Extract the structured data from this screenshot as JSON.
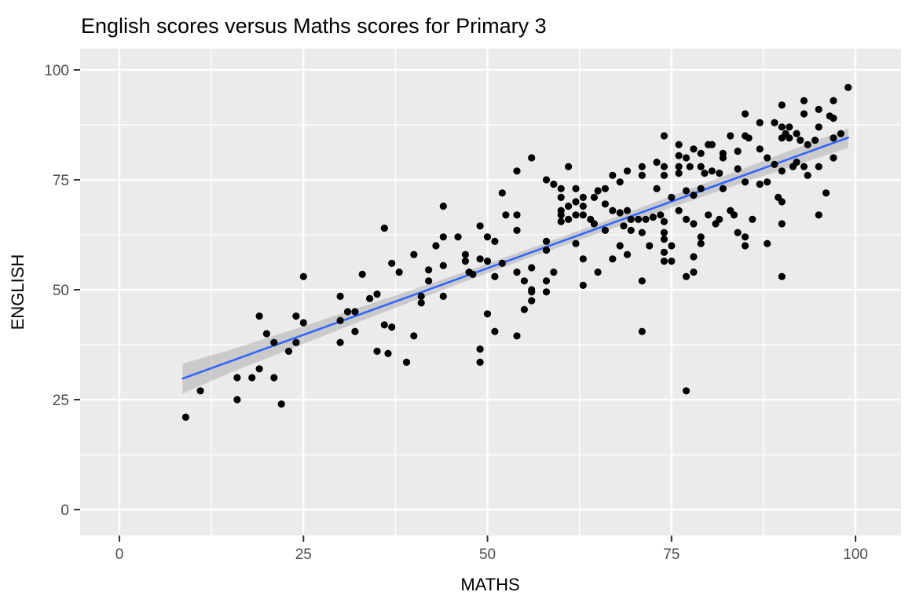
{
  "chart_data": {
    "type": "scatter",
    "title": "English scores versus Maths scores for Primary 3",
    "xlabel": "MATHS",
    "ylabel": "ENGLISH",
    "legend": "none",
    "grid": "white major and minor gridlines on grey panel",
    "x_ticks": [
      0,
      25,
      50,
      75,
      100
    ],
    "y_ticks": [
      0,
      25,
      50,
      75,
      100
    ],
    "x_minor_ticks": [
      12.5,
      37.5,
      62.5,
      87.5
    ],
    "y_minor_ticks": [
      12.5,
      37.5,
      62.5,
      87.5
    ],
    "xlim": [
      -5.34,
      106.19
    ],
    "ylim": [
      -5.89,
      104.82
    ],
    "points": [
      [
        9,
        21
      ],
      [
        11,
        27
      ],
      [
        16,
        25
      ],
      [
        16,
        30
      ],
      [
        18,
        30
      ],
      [
        19,
        32
      ],
      [
        19,
        44
      ],
      [
        20,
        40
      ],
      [
        21,
        30
      ],
      [
        21,
        38
      ],
      [
        22,
        24
      ],
      [
        23,
        36
      ],
      [
        24,
        38
      ],
      [
        24,
        44
      ],
      [
        25,
        42.5
      ],
      [
        30,
        38
      ],
      [
        30,
        43
      ],
      [
        31,
        45
      ],
      [
        32,
        40.5
      ],
      [
        32,
        45
      ],
      [
        35,
        36
      ],
      [
        36.5,
        35.5
      ],
      [
        39,
        33.5
      ],
      [
        25,
        53
      ],
      [
        30,
        48.5
      ],
      [
        33,
        53.5
      ],
      [
        34,
        48
      ],
      [
        35,
        49
      ],
      [
        36,
        42
      ],
      [
        37,
        41.5
      ],
      [
        40,
        39.5
      ],
      [
        41,
        47
      ],
      [
        41,
        48.5
      ],
      [
        44,
        48.5
      ],
      [
        49,
        33.5
      ],
      [
        49,
        36.5
      ],
      [
        50,
        44.5
      ],
      [
        51,
        40.5
      ],
      [
        54,
        39.5
      ],
      [
        55,
        45.5
      ],
      [
        56,
        47.5
      ],
      [
        56,
        49.5
      ],
      [
        58,
        49.5
      ],
      [
        36,
        64
      ],
      [
        37,
        56
      ],
      [
        38,
        54
      ],
      [
        40,
        58
      ],
      [
        42,
        52
      ],
      [
        42,
        54.5
      ],
      [
        43,
        60
      ],
      [
        44,
        55.5
      ],
      [
        44,
        62
      ],
      [
        44,
        69
      ],
      [
        46,
        62
      ],
      [
        47,
        56.5
      ],
      [
        47,
        58
      ],
      [
        47.5,
        54
      ],
      [
        48,
        53.5
      ],
      [
        49,
        57
      ],
      [
        49,
        64.5
      ],
      [
        50,
        56.5
      ],
      [
        50,
        62
      ],
      [
        51,
        53
      ],
      [
        51,
        61
      ],
      [
        52,
        56
      ],
      [
        52,
        72
      ],
      [
        52.5,
        67
      ],
      [
        54,
        54
      ],
      [
        54,
        63.5
      ],
      [
        54,
        67
      ],
      [
        54,
        77
      ],
      [
        55,
        52
      ],
      [
        56,
        50
      ],
      [
        56,
        55
      ],
      [
        56,
        80
      ],
      [
        58,
        52
      ],
      [
        58,
        59
      ],
      [
        58,
        61
      ],
      [
        58,
        75
      ],
      [
        59,
        54
      ],
      [
        59,
        74
      ],
      [
        60,
        65.5
      ],
      [
        60,
        67
      ],
      [
        60,
        68
      ],
      [
        60,
        71
      ],
      [
        60,
        73
      ],
      [
        61,
        66
      ],
      [
        61,
        69
      ],
      [
        61,
        78
      ],
      [
        62,
        60.5
      ],
      [
        62,
        67
      ],
      [
        62,
        70
      ],
      [
        62,
        73
      ],
      [
        63,
        51
      ],
      [
        63,
        57
      ],
      [
        63,
        67
      ],
      [
        63,
        69
      ],
      [
        63,
        71
      ],
      [
        64,
        66
      ],
      [
        64.5,
        65
      ],
      [
        64.5,
        71
      ],
      [
        65,
        54
      ],
      [
        65,
        72.5
      ],
      [
        66,
        63.5
      ],
      [
        66,
        69.5
      ],
      [
        66,
        73
      ],
      [
        67,
        57
      ],
      [
        67,
        68
      ],
      [
        67,
        76
      ],
      [
        68,
        60
      ],
      [
        68,
        67.5
      ],
      [
        68,
        74.5
      ],
      [
        68.5,
        64.5
      ],
      [
        69,
        58
      ],
      [
        69,
        68
      ],
      [
        69,
        77
      ],
      [
        69.5,
        63.5
      ],
      [
        69.5,
        66
      ],
      [
        70.5,
        66
      ],
      [
        71,
        76
      ],
      [
        71,
        78
      ],
      [
        71.5,
        66
      ],
      [
        72.5,
        66.5
      ],
      [
        73,
        73
      ],
      [
        73,
        79
      ],
      [
        73.5,
        67
      ],
      [
        74,
        65.5
      ],
      [
        74,
        76
      ],
      [
        74,
        78
      ],
      [
        74,
        85
      ],
      [
        75,
        71
      ],
      [
        76,
        68
      ],
      [
        76,
        76.5
      ],
      [
        76,
        78
      ],
      [
        76,
        80.5
      ],
      [
        76,
        83
      ],
      [
        77,
        66
      ],
      [
        77,
        72.5
      ],
      [
        77,
        80
      ],
      [
        77.5,
        78
      ],
      [
        78,
        65
      ],
      [
        78,
        71.5
      ],
      [
        78,
        82
      ],
      [
        79,
        73
      ],
      [
        79,
        78
      ],
      [
        79,
        81
      ],
      [
        79.5,
        76.5
      ],
      [
        80,
        67
      ],
      [
        80,
        83
      ],
      [
        80.5,
        77
      ],
      [
        80.5,
        83
      ],
      [
        81,
        65
      ],
      [
        81.5,
        66
      ],
      [
        81.5,
        76.5
      ],
      [
        82,
        73
      ],
      [
        82,
        80
      ],
      [
        82,
        81
      ],
      [
        83,
        68
      ],
      [
        83,
        85
      ],
      [
        83.5,
        67
      ],
      [
        84,
        77.5
      ],
      [
        84,
        81.5
      ],
      [
        85,
        74.5
      ],
      [
        85,
        85
      ],
      [
        85.5,
        84.5
      ],
      [
        71,
        40.5
      ],
      [
        71,
        52
      ],
      [
        71,
        63
      ],
      [
        72,
        60
      ],
      [
        74,
        56.5
      ],
      [
        74,
        58.5
      ],
      [
        74,
        61.5
      ],
      [
        74,
        63
      ],
      [
        75,
        56.5
      ],
      [
        75,
        60
      ],
      [
        77,
        27
      ],
      [
        77,
        53
      ],
      [
        78,
        54
      ],
      [
        78,
        57.5
      ],
      [
        79,
        60.5
      ],
      [
        79,
        62
      ],
      [
        84,
        63
      ],
      [
        85,
        60
      ],
      [
        85,
        62
      ],
      [
        86,
        66
      ],
      [
        88,
        60.5
      ],
      [
        90,
        53
      ],
      [
        90,
        65
      ],
      [
        85,
        90
      ],
      [
        87,
        74
      ],
      [
        87,
        82
      ],
      [
        87,
        88
      ],
      [
        88,
        74.5
      ],
      [
        88,
        80
      ],
      [
        89,
        78.5
      ],
      [
        89,
        88
      ],
      [
        89.5,
        71
      ],
      [
        90,
        70
      ],
      [
        90,
        77
      ],
      [
        90,
        84.5
      ],
      [
        90,
        87
      ],
      [
        90,
        92
      ],
      [
        90.5,
        85.5
      ],
      [
        91,
        84.5
      ],
      [
        91,
        87
      ],
      [
        91.5,
        78
      ],
      [
        92,
        79
      ],
      [
        92,
        85.5
      ],
      [
        92.5,
        84
      ],
      [
        93,
        78
      ],
      [
        93,
        90
      ],
      [
        93,
        93
      ],
      [
        93.5,
        76
      ],
      [
        93.5,
        83
      ],
      [
        94.5,
        84
      ],
      [
        95,
        67
      ],
      [
        95,
        78
      ],
      [
        95,
        87
      ],
      [
        95,
        91
      ],
      [
        96,
        72
      ],
      [
        96.5,
        89.5
      ],
      [
        97,
        80
      ],
      [
        97,
        84.5
      ],
      [
        97,
        89
      ],
      [
        97,
        93
      ],
      [
        98,
        85.5
      ],
      [
        99,
        96
      ]
    ],
    "regression_line": {
      "x1": 8.6,
      "y1": 29.8,
      "x2": 99,
      "y2": 84.6
    },
    "confidence_band": {
      "x": [
        8.6,
        15,
        25,
        35,
        45,
        55,
        65,
        75,
        85,
        92,
        99
      ],
      "lower": [
        26.4,
        31.1,
        37.7,
        44.3,
        50.65,
        56.9,
        62.8,
        68.7,
        74.5,
        78.4,
        82.3
      ],
      "upper": [
        33.2,
        36.3,
        41.7,
        47.3,
        52.95,
        58.9,
        65.0,
        71.3,
        77.7,
        82.2,
        86.7
      ]
    },
    "colors": {
      "panel_background": "#ebebeb",
      "grid_major": "#ffffff",
      "grid_minor": "#ffffff",
      "point": "#000000",
      "smooth_line": "#3366ff",
      "ribbon": "#999999",
      "tick_mark": "#333333",
      "tick_label": "#4d4d4d",
      "title": "#000000",
      "axis_title": "#000000",
      "figure_background": "#ffffff"
    }
  }
}
